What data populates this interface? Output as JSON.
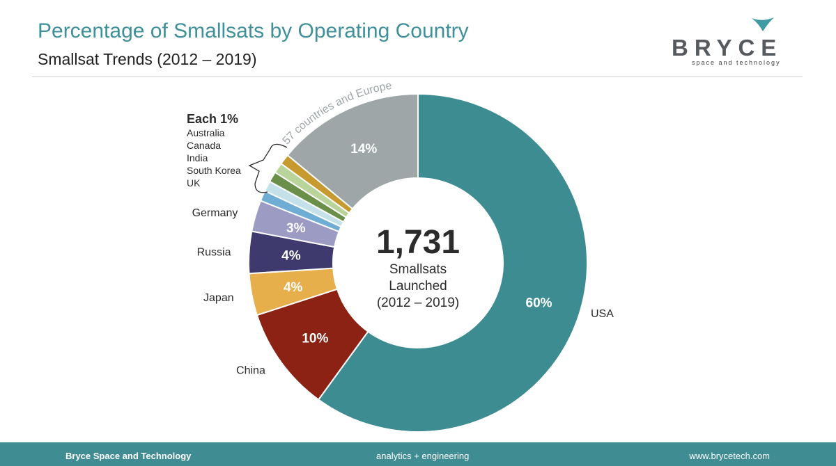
{
  "header": {
    "title": "Percentage of Smallsats by Operating Country",
    "subtitle": "Smallsat Trends (2012 – 2019)"
  },
  "logo": {
    "wordmark": "BRYCE",
    "tagline": "space and technology",
    "mark_icon": "chevron-swoosh-icon"
  },
  "chart_data": {
    "type": "pie",
    "variant": "donut",
    "center_value": "1,731",
    "center_caption": [
      "Smallsats",
      "Launched",
      "(2012 – 2019)"
    ],
    "slices": [
      {
        "label": "USA",
        "value": 60,
        "value_label": "60%",
        "color": "#3c8c92"
      },
      {
        "label": "China",
        "value": 10,
        "value_label": "10%",
        "color": "#8b2213"
      },
      {
        "label": "Japan",
        "value": 4,
        "value_label": "4%",
        "color": "#e6af4b"
      },
      {
        "label": "Russia",
        "value": 4,
        "value_label": "4%",
        "color": "#3e3a6d"
      },
      {
        "label": "Germany",
        "value": 3,
        "value_label": "3%",
        "color": "#9c9bc4"
      },
      {
        "label": "UK",
        "value": 1,
        "value_label": "",
        "color": "#6fadd4"
      },
      {
        "label": "South Korea",
        "value": 1,
        "value_label": "",
        "color": "#c4e1ea"
      },
      {
        "label": "India",
        "value": 1,
        "value_label": "",
        "color": "#6a8f49"
      },
      {
        "label": "Canada",
        "value": 1,
        "value_label": "",
        "color": "#b9d49a"
      },
      {
        "label": "Australia",
        "value": 1,
        "value_label": "",
        "color": "#c79a2f"
      },
      {
        "label": "57 countries and Europe",
        "value": 14,
        "value_label": "14%",
        "color": "#9ea6a8"
      }
    ],
    "group_annotation": {
      "heading": "Each 1%",
      "items": [
        "Australia",
        "Canada",
        "India",
        "South Korea",
        "UK"
      ]
    }
  },
  "footer": {
    "left": "Bryce Space and Technology",
    "center": "analytics  +  engineering",
    "right": "www.brycetech.com"
  }
}
